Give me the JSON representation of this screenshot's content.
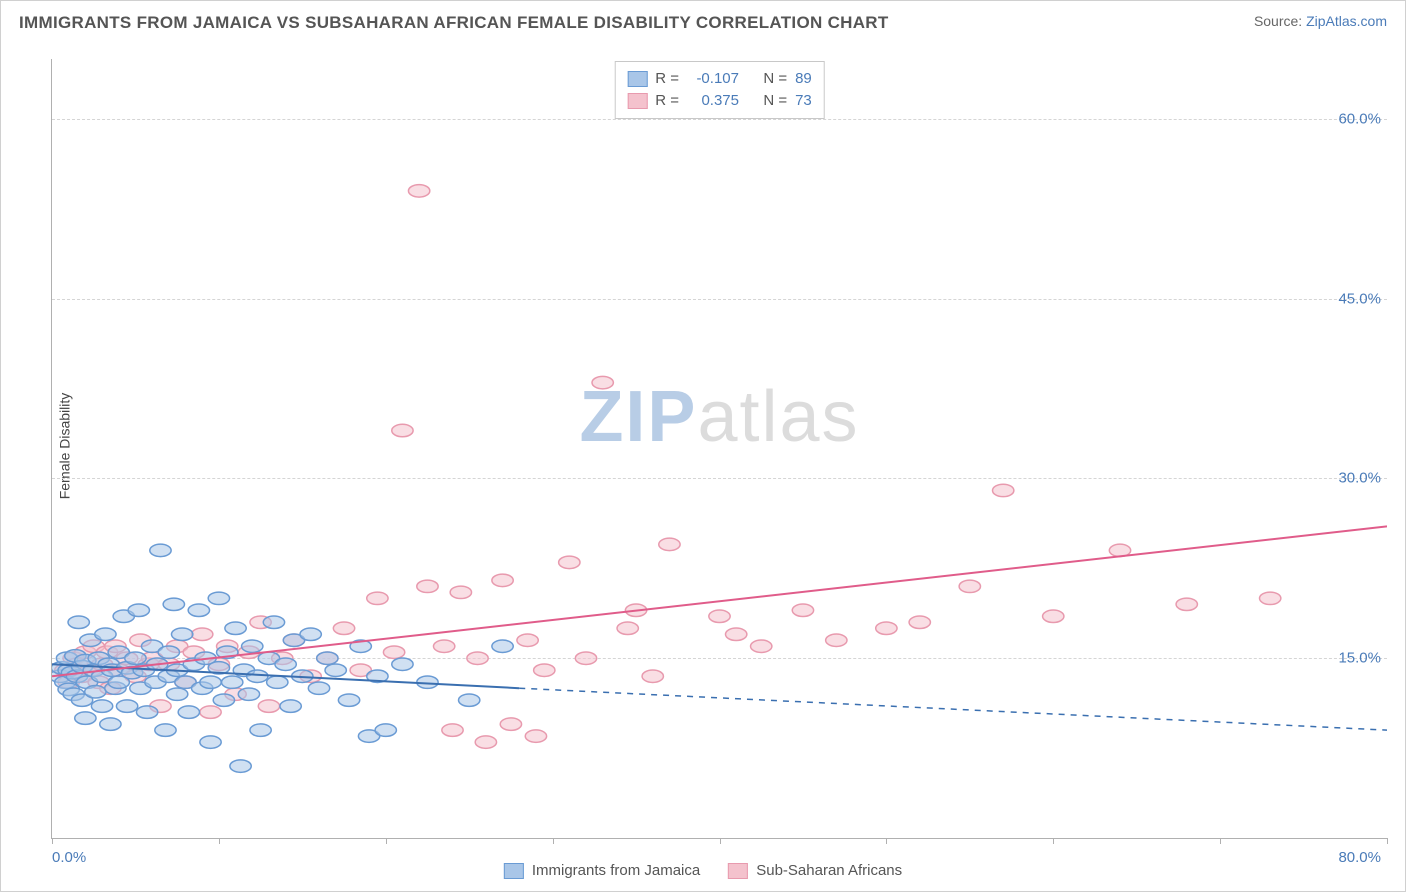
{
  "header": {
    "title": "IMMIGRANTS FROM JAMAICA VS SUBSAHARAN AFRICAN FEMALE DISABILITY CORRELATION CHART",
    "source_prefix": "Source: ",
    "source_name": "ZipAtlas.com"
  },
  "watermark": {
    "zip": "ZIP",
    "atlas": "atlas"
  },
  "chart": {
    "type": "scatter",
    "xlim": [
      0,
      80
    ],
    "ylim": [
      0,
      65
    ],
    "xtick_step": 10,
    "yticks": [
      15,
      30,
      45,
      60
    ],
    "ytick_labels": [
      "15.0%",
      "30.0%",
      "45.0%",
      "60.0%"
    ],
    "xmin_label": "0.0%",
    "xmax_label": "80.0%",
    "ylabel": "Female Disability",
    "background_color": "#ffffff",
    "grid_color": "#d5d5d5",
    "axis_color": "#b0b0b0",
    "tick_label_color": "#4a7bb8",
    "marker_radius": 8,
    "marker_opacity": 0.55,
    "series": [
      {
        "name": "Immigrants from Jamaica",
        "fill": "#a9c6e8",
        "stroke": "#6a9bd4",
        "r": -0.107,
        "n": 89,
        "line": {
          "x1": 0,
          "y1": 14.5,
          "x2": 28,
          "y2": 12.5,
          "dash_x2": 80,
          "dash_y2": 9.0,
          "color": "#3a6fb0",
          "width": 2
        },
        "points": [
          [
            0.5,
            13.5
          ],
          [
            0.6,
            14.2
          ],
          [
            0.8,
            13.0
          ],
          [
            0.9,
            15.0
          ],
          [
            1.0,
            12.4
          ],
          [
            1.0,
            14.0
          ],
          [
            1.2,
            13.8
          ],
          [
            1.3,
            12.0
          ],
          [
            1.4,
            15.2
          ],
          [
            1.5,
            13.5
          ],
          [
            1.6,
            18.0
          ],
          [
            1.8,
            14.3
          ],
          [
            1.8,
            11.5
          ],
          [
            2.0,
            14.8
          ],
          [
            2.0,
            10.0
          ],
          [
            2.1,
            13.0
          ],
          [
            2.3,
            16.5
          ],
          [
            2.5,
            14.0
          ],
          [
            2.6,
            12.2
          ],
          [
            2.8,
            15.0
          ],
          [
            3.0,
            13.5
          ],
          [
            3.0,
            11.0
          ],
          [
            3.2,
            17.0
          ],
          [
            3.4,
            14.5
          ],
          [
            3.5,
            9.5
          ],
          [
            3.6,
            14.0
          ],
          [
            3.8,
            12.5
          ],
          [
            4.0,
            15.5
          ],
          [
            4.0,
            13.0
          ],
          [
            4.3,
            18.5
          ],
          [
            4.5,
            14.2
          ],
          [
            4.5,
            11.0
          ],
          [
            4.8,
            13.8
          ],
          [
            5.0,
            15.0
          ],
          [
            5.2,
            19.0
          ],
          [
            5.3,
            12.5
          ],
          [
            5.5,
            14.0
          ],
          [
            5.7,
            10.5
          ],
          [
            6.0,
            16.0
          ],
          [
            6.2,
            13.0
          ],
          [
            6.3,
            14.5
          ],
          [
            6.5,
            24.0
          ],
          [
            6.8,
            9.0
          ],
          [
            7.0,
            13.5
          ],
          [
            7.0,
            15.5
          ],
          [
            7.3,
            19.5
          ],
          [
            7.5,
            12.0
          ],
          [
            7.5,
            14.0
          ],
          [
            7.8,
            17.0
          ],
          [
            8.0,
            13.0
          ],
          [
            8.2,
            10.5
          ],
          [
            8.5,
            14.5
          ],
          [
            8.8,
            19.0
          ],
          [
            9.0,
            12.5
          ],
          [
            9.2,
            15.0
          ],
          [
            9.5,
            8.0
          ],
          [
            9.5,
            13.0
          ],
          [
            10.0,
            20.0
          ],
          [
            10.0,
            14.2
          ],
          [
            10.3,
            11.5
          ],
          [
            10.5,
            15.5
          ],
          [
            10.8,
            13.0
          ],
          [
            11.0,
            17.5
          ],
          [
            11.3,
            6.0
          ],
          [
            11.5,
            14.0
          ],
          [
            11.8,
            12.0
          ],
          [
            12.0,
            16.0
          ],
          [
            12.3,
            13.5
          ],
          [
            12.5,
            9.0
          ],
          [
            13.0,
            15.0
          ],
          [
            13.3,
            18.0
          ],
          [
            13.5,
            13.0
          ],
          [
            14.0,
            14.5
          ],
          [
            14.3,
            11.0
          ],
          [
            14.5,
            16.5
          ],
          [
            15.0,
            13.5
          ],
          [
            15.5,
            17.0
          ],
          [
            16.0,
            12.5
          ],
          [
            16.5,
            15.0
          ],
          [
            17.0,
            14.0
          ],
          [
            17.8,
            11.5
          ],
          [
            18.5,
            16.0
          ],
          [
            19.0,
            8.5
          ],
          [
            19.5,
            13.5
          ],
          [
            20.0,
            9.0
          ],
          [
            21.0,
            14.5
          ],
          [
            22.5,
            13.0
          ],
          [
            25.0,
            11.5
          ],
          [
            27.0,
            16.0
          ]
        ]
      },
      {
        "name": "Sub-Saharan Africans",
        "fill": "#f4c2cd",
        "stroke": "#e89aae",
        "r": 0.375,
        "n": 73,
        "line": {
          "x1": 0,
          "y1": 13.5,
          "x2": 80,
          "y2": 26.0,
          "color": "#e05c8a",
          "width": 2
        },
        "points": [
          [
            0.8,
            14.0
          ],
          [
            1.0,
            13.0
          ],
          [
            1.3,
            15.0
          ],
          [
            1.5,
            14.5
          ],
          [
            1.8,
            13.5
          ],
          [
            2.0,
            15.5
          ],
          [
            2.3,
            14.0
          ],
          [
            2.5,
            16.0
          ],
          [
            2.8,
            13.0
          ],
          [
            3.0,
            14.5
          ],
          [
            3.3,
            15.5
          ],
          [
            3.5,
            12.5
          ],
          [
            3.8,
            16.0
          ],
          [
            4.0,
            14.0
          ],
          [
            4.5,
            15.0
          ],
          [
            5.0,
            13.5
          ],
          [
            5.3,
            16.5
          ],
          [
            5.8,
            14.5
          ],
          [
            6.0,
            15.0
          ],
          [
            6.5,
            11.0
          ],
          [
            7.0,
            14.5
          ],
          [
            7.5,
            16.0
          ],
          [
            8.0,
            13.0
          ],
          [
            8.5,
            15.5
          ],
          [
            9.0,
            17.0
          ],
          [
            9.5,
            10.5
          ],
          [
            10.0,
            14.5
          ],
          [
            10.5,
            16.0
          ],
          [
            11.0,
            12.0
          ],
          [
            11.8,
            15.5
          ],
          [
            12.5,
            18.0
          ],
          [
            13.0,
            11.0
          ],
          [
            13.8,
            15.0
          ],
          [
            14.5,
            16.5
          ],
          [
            15.5,
            13.5
          ],
          [
            16.5,
            15.0
          ],
          [
            17.5,
            17.5
          ],
          [
            18.5,
            14.0
          ],
          [
            19.5,
            20.0
          ],
          [
            20.5,
            15.5
          ],
          [
            21.0,
            34.0
          ],
          [
            22.0,
            54.0
          ],
          [
            22.5,
            21.0
          ],
          [
            23.5,
            16.0
          ],
          [
            24.0,
            9.0
          ],
          [
            24.5,
            20.5
          ],
          [
            25.5,
            15.0
          ],
          [
            26.0,
            8.0
          ],
          [
            27.0,
            21.5
          ],
          [
            27.5,
            9.5
          ],
          [
            28.5,
            16.5
          ],
          [
            29.5,
            14.0
          ],
          [
            31.0,
            23.0
          ],
          [
            32.0,
            15.0
          ],
          [
            33.0,
            38.0
          ],
          [
            34.5,
            17.5
          ],
          [
            35.0,
            19.0
          ],
          [
            36.0,
            13.5
          ],
          [
            37.0,
            24.5
          ],
          [
            40.0,
            18.5
          ],
          [
            41.0,
            17.0
          ],
          [
            42.5,
            16.0
          ],
          [
            45.0,
            19.0
          ],
          [
            47.0,
            16.5
          ],
          [
            50.0,
            17.5
          ],
          [
            52.0,
            18.0
          ],
          [
            55.0,
            21.0
          ],
          [
            57.0,
            29.0
          ],
          [
            60.0,
            18.5
          ],
          [
            64.0,
            24.0
          ],
          [
            68.0,
            19.5
          ],
          [
            73.0,
            20.0
          ],
          [
            29.0,
            8.5
          ]
        ]
      }
    ]
  },
  "corr_legend": {
    "r_label": "R =",
    "n_label": "N ="
  },
  "bottom_legend": {
    "items": [
      "Immigrants from Jamaica",
      "Sub-Saharan Africans"
    ]
  }
}
